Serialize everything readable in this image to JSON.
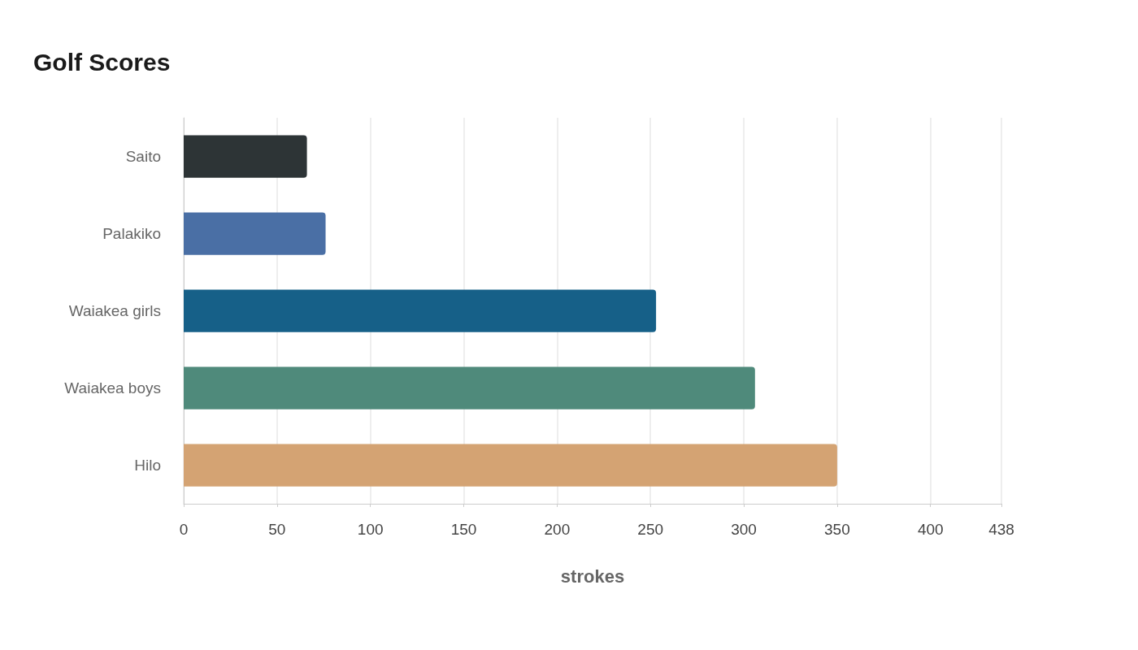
{
  "chart_data": {
    "type": "bar",
    "orientation": "horizontal",
    "title": "Golf Scores",
    "xlabel": "strokes",
    "categories": [
      "Saito",
      "Palakiko",
      "Waiakea girls",
      "Waiakea boys",
      "Hilo"
    ],
    "values": [
      66,
      76,
      253,
      306,
      350
    ],
    "colors": [
      "#2d3436",
      "#4a6fa5",
      "#166088",
      "#4f8a7b",
      "#d4a373"
    ],
    "xlim": [
      0,
      438
    ],
    "xticks": [
      0,
      50,
      100,
      150,
      200,
      250,
      300,
      350,
      400,
      438
    ],
    "grid": "x"
  }
}
